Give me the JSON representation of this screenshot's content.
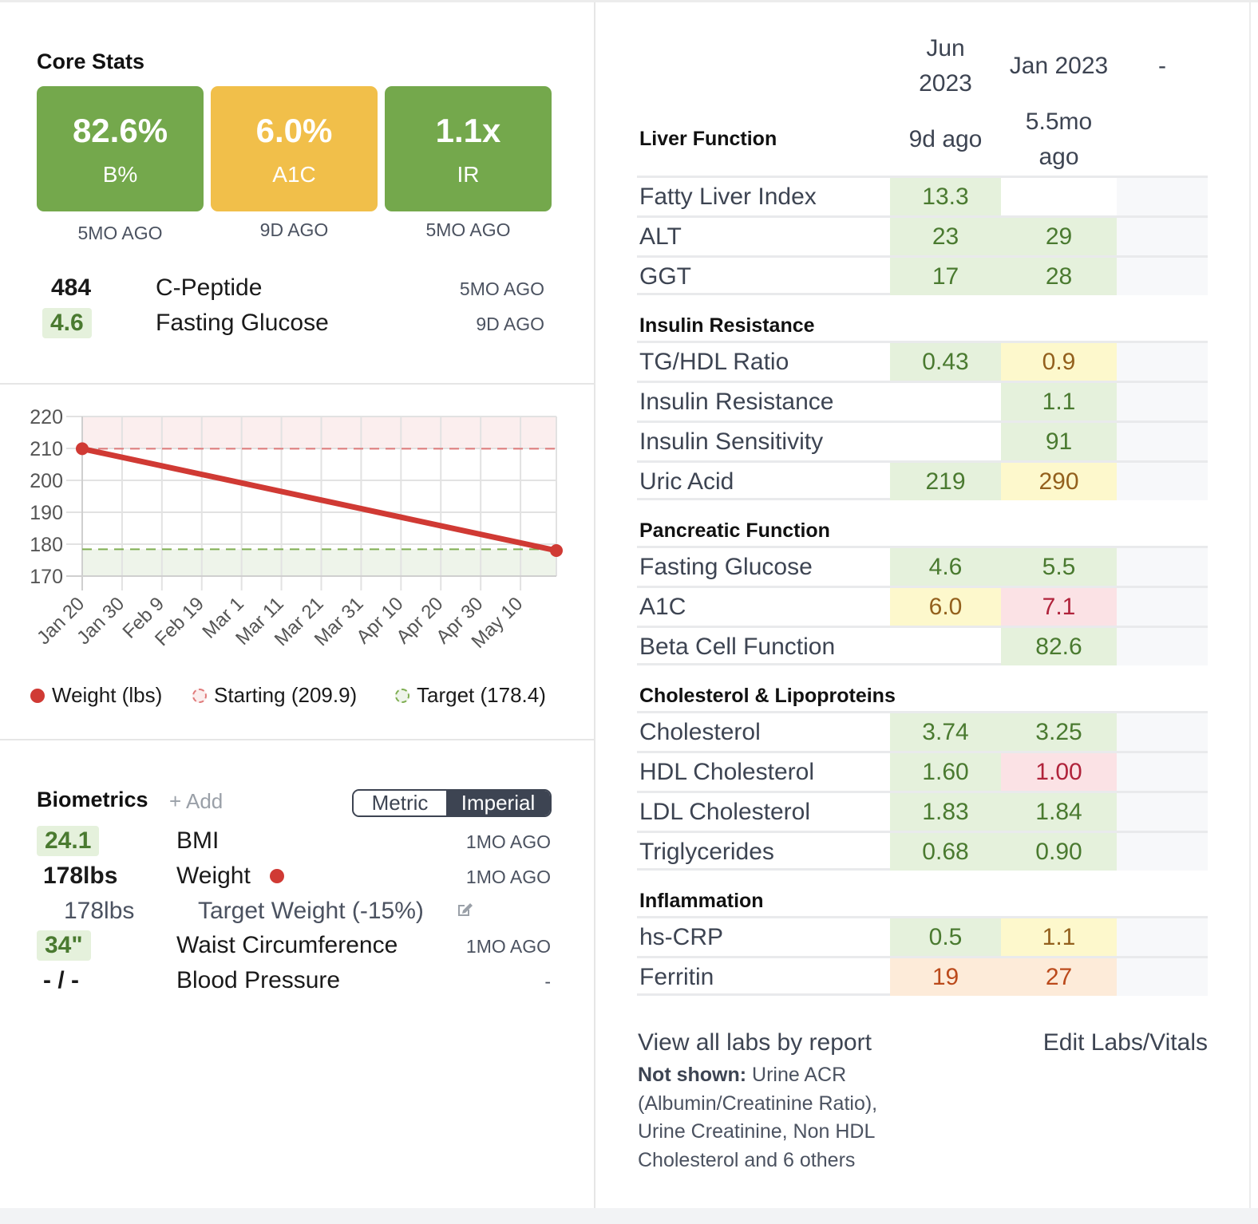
{
  "core_stats": {
    "title": "Core Stats",
    "cards": [
      {
        "value": "82.6%",
        "label": "B%",
        "ago": "5MO AGO",
        "color": "#74a84c"
      },
      {
        "value": "6.0%",
        "label": "A1C",
        "ago": "9D AGO",
        "color": "#f1bf4a"
      },
      {
        "value": "1.1x",
        "label": "IR",
        "ago": "5MO AGO",
        "color": "#74a84c"
      }
    ],
    "rows": [
      {
        "value": "484",
        "label": "C-Peptide",
        "ago": "5MO AGO"
      },
      {
        "value": "4.6",
        "label": "Fasting Glucose",
        "ago": "9D AGO"
      }
    ]
  },
  "chart_data": {
    "type": "line",
    "title": "",
    "xlabel": "",
    "ylabel": "",
    "x_ticks": [
      "Jan 20",
      "Jan 30",
      "Feb 9",
      "Feb 19",
      "Mar 1",
      "Mar 11",
      "Mar 21",
      "Mar 31",
      "Apr 10",
      "Apr 20",
      "Apr 30",
      "May 10"
    ],
    "y_ticks": [
      220,
      210,
      200,
      190,
      180,
      170
    ],
    "ylim": [
      170,
      220
    ],
    "x_range_days": [
      0,
      119
    ],
    "grid": true,
    "series": [
      {
        "name": "Weight (lbs)",
        "color": "#d03a34",
        "points": [
          {
            "day": 0,
            "value": 209.9
          },
          {
            "day": 119,
            "value": 178
          }
        ]
      }
    ],
    "reference_lines": [
      {
        "name": "Starting (209.9)",
        "value": 209.9,
        "color": "#e07a7a",
        "band": "above",
        "band_color": "#fbeeee"
      },
      {
        "name": "Target (178.4)",
        "value": 178.4,
        "color": "#7fae52",
        "band": "below",
        "band_color": "#eef4ea"
      }
    ],
    "legend": [
      "Weight (lbs)",
      "Starting (209.9)",
      "Target (178.4)"
    ],
    "legend_position": "bottom"
  },
  "biometrics": {
    "title": "Biometrics",
    "add_label": "+ Add",
    "units_toggle": {
      "options": [
        "Metric",
        "Imperial"
      ],
      "selected": "Imperial"
    },
    "rows": [
      {
        "value": "24.1",
        "label": "BMI",
        "ago": "1MO AGO"
      },
      {
        "value": "178lbs",
        "label": "Weight",
        "ago": "1MO AGO"
      },
      {
        "value": "178lbs",
        "label": "Target Weight (-15%)",
        "ago": ""
      },
      {
        "value": "34\"",
        "label": "Waist Circumference",
        "ago": "1MO AGO"
      },
      {
        "value": "- / -",
        "label": "Blood Pressure",
        "ago": "-"
      }
    ]
  },
  "labs": {
    "columns": [
      {
        "date": "Jun 2023",
        "date_line1": "Jun",
        "date_line2": "2023",
        "ago": "9d ago"
      },
      {
        "date": "Jan 2023",
        "ago_line1": "5.5mo",
        "ago_line2": "ago"
      },
      {
        "date": "-"
      }
    ],
    "groups": [
      {
        "title": "Liver Function",
        "rows": [
          {
            "name": "Fatty Liver Index",
            "v1": "13.3",
            "s1": "g",
            "v2": "",
            "s2": ""
          },
          {
            "name": "ALT",
            "v1": "23",
            "s1": "g",
            "v2": "29",
            "s2": "g"
          },
          {
            "name": "GGT",
            "v1": "17",
            "s1": "g",
            "v2": "28",
            "s2": "g"
          }
        ]
      },
      {
        "title": "Insulin Resistance",
        "rows": [
          {
            "name": "TG/HDL Ratio",
            "v1": "0.43",
            "s1": "g",
            "v2": "0.9",
            "s2": "y"
          },
          {
            "name": "Insulin Resistance",
            "v1": "",
            "s1": "",
            "v2": "1.1",
            "s2": "g"
          },
          {
            "name": "Insulin Sensitivity",
            "v1": "",
            "s1": "",
            "v2": "91",
            "s2": "g"
          },
          {
            "name": "Uric Acid",
            "v1": "219",
            "s1": "g",
            "v2": "290",
            "s2": "y"
          }
        ]
      },
      {
        "title": "Pancreatic Function",
        "rows": [
          {
            "name": "Fasting Glucose",
            "v1": "4.6",
            "s1": "g",
            "v2": "5.5",
            "s2": "g"
          },
          {
            "name": "A1C",
            "v1": "6.0",
            "s1": "y",
            "v2": "7.1",
            "s2": "r"
          },
          {
            "name": "Beta Cell Function",
            "v1": "",
            "s1": "",
            "v2": "82.6",
            "s2": "g"
          }
        ]
      },
      {
        "title": "Cholesterol & Lipoproteins",
        "rows": [
          {
            "name": "Cholesterol",
            "v1": "3.74",
            "s1": "g",
            "v2": "3.25",
            "s2": "g"
          },
          {
            "name": "HDL Cholesterol",
            "v1": "1.60",
            "s1": "g",
            "v2": "1.00",
            "s2": "r"
          },
          {
            "name": "LDL Cholesterol",
            "v1": "1.83",
            "s1": "g",
            "v2": "1.84",
            "s2": "g"
          },
          {
            "name": "Triglycerides",
            "v1": "0.68",
            "s1": "g",
            "v2": "0.90",
            "s2": "g"
          }
        ]
      },
      {
        "title": "Inflammation",
        "rows": [
          {
            "name": "hs-CRP",
            "v1": "0.5",
            "s1": "g",
            "v2": "1.1",
            "s2": "y"
          },
          {
            "name": "Ferritin",
            "v1": "19",
            "s1": "o",
            "v2": "27",
            "s2": "o"
          }
        ]
      }
    ],
    "view_all_label": "View all labs by report",
    "edit_label": "Edit Labs/Vitals",
    "not_shown_label": "Not shown:",
    "not_shown_text": "Urine ACR (Albumin/Creatinine Ratio), Urine Creatinine, Non HDL Cholesterol and 6 others"
  }
}
